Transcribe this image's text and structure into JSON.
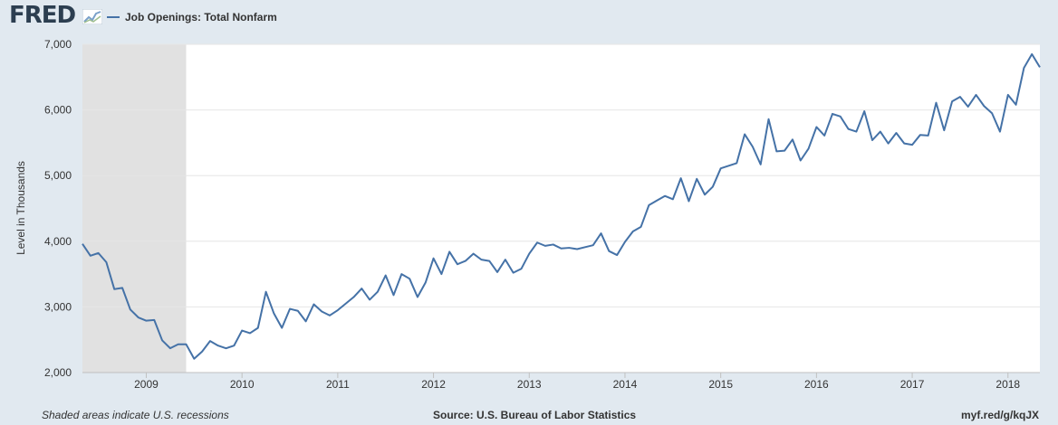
{
  "header": {
    "logo_text": "FRED",
    "logo_icon": "fred-graph-icon",
    "legend_label": "Job Openings: Total Nonfarm"
  },
  "footer": {
    "note": "Shaded areas indicate U.S. recessions",
    "source": "Source: U.S. Bureau of Labor Statistics",
    "link": "myf.red/g/kqJX"
  },
  "colors": {
    "page_background": "#e1e9f0",
    "plot_background": "#ffffff",
    "series": "#4572a7",
    "recession_shading": "#e1e1e1",
    "gridline": "#e6e6e6"
  },
  "chart_data": {
    "type": "line",
    "title": "",
    "xlabel": "",
    "ylabel": "Level in Thousands",
    "ylim": [
      2000,
      7000
    ],
    "xlim": [
      "2008-05",
      "2018-05"
    ],
    "y_ticks": [
      2000,
      3000,
      4000,
      5000,
      6000,
      7000
    ],
    "y_tick_labels": [
      "2,000",
      "3,000",
      "4,000",
      "5,000",
      "6,000",
      "7,000"
    ],
    "x_tick_labels": [
      "2009",
      "2010",
      "2011",
      "2012",
      "2013",
      "2014",
      "2015",
      "2016",
      "2017",
      "2018"
    ],
    "grid": true,
    "recessions": [
      {
        "start": "2008-05",
        "end": "2009-06"
      }
    ],
    "series": [
      {
        "name": "Job Openings: Total Nonfarm",
        "start": "2008-05",
        "frequency": "monthly",
        "values": [
          3960,
          3780,
          3820,
          3680,
          3270,
          3290,
          2960,
          2840,
          2790,
          2800,
          2490,
          2370,
          2430,
          2430,
          2210,
          2320,
          2480,
          2410,
          2370,
          2410,
          2640,
          2600,
          2680,
          3230,
          2900,
          2680,
          2970,
          2940,
          2780,
          3040,
          2930,
          2870,
          2950,
          3050,
          3150,
          3280,
          3110,
          3230,
          3480,
          3180,
          3500,
          3430,
          3150,
          3370,
          3740,
          3500,
          3840,
          3650,
          3700,
          3810,
          3720,
          3700,
          3530,
          3720,
          3520,
          3580,
          3810,
          3980,
          3930,
          3950,
          3890,
          3900,
          3880,
          3910,
          3940,
          4120,
          3850,
          3790,
          3990,
          4150,
          4220,
          4550,
          4620,
          4690,
          4640,
          4960,
          4610,
          4950,
          4710,
          4830,
          5110,
          5150,
          5190,
          5630,
          5440,
          5170,
          5860,
          5370,
          5380,
          5550,
          5230,
          5410,
          5740,
          5610,
          5940,
          5900,
          5710,
          5670,
          5980,
          5540,
          5670,
          5490,
          5650,
          5490,
          5470,
          5620,
          5610,
          6110,
          5690,
          6130,
          6200,
          6050,
          6230,
          6060,
          5950,
          5670,
          6230,
          6080,
          6640,
          6850,
          6650
        ]
      }
    ]
  }
}
